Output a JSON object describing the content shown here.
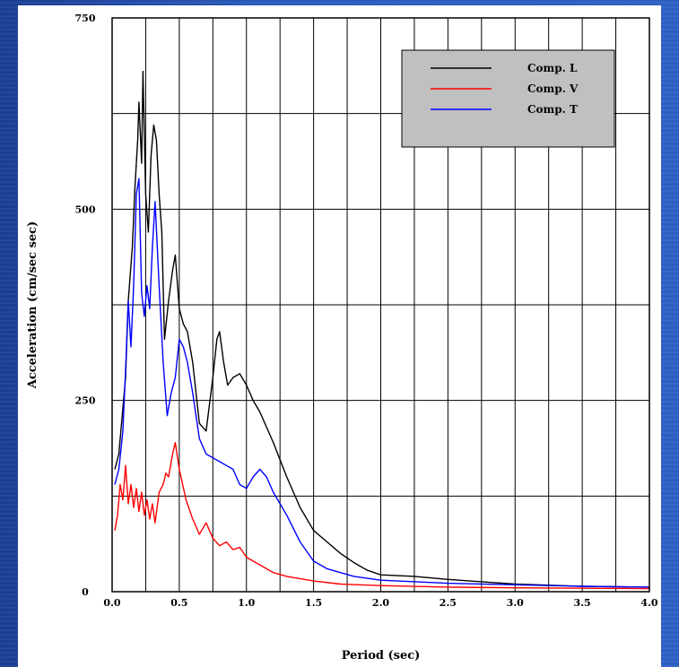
{
  "chart_data": {
    "type": "line",
    "title": "",
    "xlabel": "Period (sec)",
    "ylabel": "Acceleration (cm/sec sec)",
    "xlim": [
      0,
      4.0
    ],
    "ylim": [
      0,
      750
    ],
    "x_ticks": [
      "0.0",
      "0.5",
      "1.0",
      "1.5",
      "2.0",
      "2.5",
      "3.0",
      "3.5",
      "4.0"
    ],
    "y_ticks": [
      "0",
      "250",
      "500",
      "750"
    ],
    "grid": true,
    "legend_position": "top-right",
    "legend_background": "#c0c0c0",
    "series": [
      {
        "name": "Comp. L",
        "color": "#000000",
        "points": [
          [
            0.02,
            160
          ],
          [
            0.05,
            180
          ],
          [
            0.08,
            240
          ],
          [
            0.1,
            280
          ],
          [
            0.12,
            380
          ],
          [
            0.15,
            450
          ],
          [
            0.17,
            530
          ],
          [
            0.19,
            590
          ],
          [
            0.2,
            640
          ],
          [
            0.22,
            560
          ],
          [
            0.23,
            680
          ],
          [
            0.25,
            520
          ],
          [
            0.27,
            470
          ],
          [
            0.29,
            570
          ],
          [
            0.31,
            610
          ],
          [
            0.33,
            590
          ],
          [
            0.35,
            520
          ],
          [
            0.37,
            470
          ],
          [
            0.39,
            330
          ],
          [
            0.42,
            380
          ],
          [
            0.45,
            420
          ],
          [
            0.47,
            440
          ],
          [
            0.5,
            370
          ],
          [
            0.53,
            350
          ],
          [
            0.56,
            340
          ],
          [
            0.6,
            300
          ],
          [
            0.65,
            220
          ],
          [
            0.7,
            210
          ],
          [
            0.75,
            280
          ],
          [
            0.78,
            330
          ],
          [
            0.8,
            340
          ],
          [
            0.83,
            300
          ],
          [
            0.86,
            270
          ],
          [
            0.9,
            280
          ],
          [
            0.95,
            285
          ],
          [
            1.0,
            270
          ],
          [
            1.05,
            250
          ],
          [
            1.1,
            235
          ],
          [
            1.15,
            215
          ],
          [
            1.2,
            195
          ],
          [
            1.3,
            150
          ],
          [
            1.4,
            110
          ],
          [
            1.5,
            80
          ],
          [
            1.6,
            65
          ],
          [
            1.7,
            50
          ],
          [
            1.8,
            38
          ],
          [
            1.9,
            28
          ],
          [
            2.0,
            22
          ],
          [
            2.25,
            20
          ],
          [
            2.5,
            16
          ],
          [
            2.75,
            13
          ],
          [
            3.0,
            10
          ],
          [
            3.5,
            7
          ],
          [
            4.0,
            6
          ]
        ]
      },
      {
        "name": "Comp. V",
        "color": "#ff0000",
        "points": [
          [
            0.02,
            80
          ],
          [
            0.04,
            100
          ],
          [
            0.06,
            140
          ],
          [
            0.08,
            120
          ],
          [
            0.1,
            165
          ],
          [
            0.12,
            115
          ],
          [
            0.14,
            140
          ],
          [
            0.16,
            110
          ],
          [
            0.18,
            135
          ],
          [
            0.2,
            105
          ],
          [
            0.22,
            130
          ],
          [
            0.24,
            100
          ],
          [
            0.26,
            120
          ],
          [
            0.28,
            95
          ],
          [
            0.3,
            115
          ],
          [
            0.32,
            90
          ],
          [
            0.35,
            130
          ],
          [
            0.38,
            140
          ],
          [
            0.4,
            155
          ],
          [
            0.42,
            150
          ],
          [
            0.45,
            180
          ],
          [
            0.47,
            195
          ],
          [
            0.5,
            160
          ],
          [
            0.55,
            120
          ],
          [
            0.6,
            95
          ],
          [
            0.65,
            75
          ],
          [
            0.7,
            90
          ],
          [
            0.75,
            70
          ],
          [
            0.8,
            60
          ],
          [
            0.85,
            65
          ],
          [
            0.9,
            55
          ],
          [
            0.95,
            58
          ],
          [
            1.0,
            45
          ],
          [
            1.1,
            35
          ],
          [
            1.2,
            25
          ],
          [
            1.3,
            20
          ],
          [
            1.5,
            14
          ],
          [
            1.7,
            10
          ],
          [
            2.0,
            8
          ],
          [
            2.5,
            6
          ],
          [
            3.0,
            5
          ],
          [
            4.0,
            4
          ]
        ]
      },
      {
        "name": "Comp. T",
        "color": "#0000ff",
        "points": [
          [
            0.02,
            140
          ],
          [
            0.05,
            160
          ],
          [
            0.08,
            210
          ],
          [
            0.1,
            290
          ],
          [
            0.12,
            380
          ],
          [
            0.14,
            320
          ],
          [
            0.16,
            400
          ],
          [
            0.18,
            520
          ],
          [
            0.2,
            540
          ],
          [
            0.22,
            390
          ],
          [
            0.24,
            360
          ],
          [
            0.26,
            400
          ],
          [
            0.28,
            370
          ],
          [
            0.3,
            450
          ],
          [
            0.32,
            510
          ],
          [
            0.35,
            400
          ],
          [
            0.38,
            300
          ],
          [
            0.41,
            230
          ],
          [
            0.44,
            260
          ],
          [
            0.47,
            280
          ],
          [
            0.5,
            330
          ],
          [
            0.53,
            320
          ],
          [
            0.56,
            300
          ],
          [
            0.6,
            260
          ],
          [
            0.65,
            200
          ],
          [
            0.7,
            180
          ],
          [
            0.75,
            175
          ],
          [
            0.8,
            170
          ],
          [
            0.85,
            165
          ],
          [
            0.9,
            160
          ],
          [
            0.95,
            140
          ],
          [
            1.0,
            135
          ],
          [
            1.05,
            150
          ],
          [
            1.1,
            160
          ],
          [
            1.15,
            150
          ],
          [
            1.2,
            130
          ],
          [
            1.3,
            100
          ],
          [
            1.4,
            65
          ],
          [
            1.5,
            40
          ],
          [
            1.6,
            30
          ],
          [
            1.7,
            25
          ],
          [
            1.8,
            20
          ],
          [
            2.0,
            15
          ],
          [
            2.5,
            11
          ],
          [
            3.0,
            9
          ],
          [
            3.5,
            7
          ],
          [
            4.0,
            6
          ]
        ]
      }
    ]
  }
}
